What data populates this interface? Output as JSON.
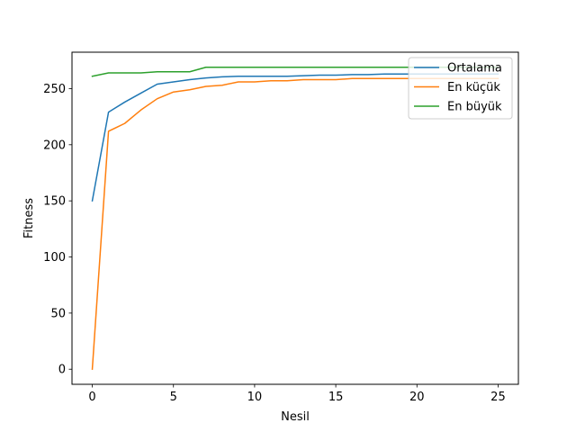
{
  "chart_data": {
    "type": "line",
    "title": "",
    "xlabel": "Nesil",
    "ylabel": "Fitness",
    "xlim": [
      -1.25,
      26.25
    ],
    "ylim": [
      -13.45,
      282.45
    ],
    "xticks": [
      0,
      5,
      10,
      15,
      20,
      25
    ],
    "yticks": [
      0,
      50,
      100,
      150,
      200,
      250
    ],
    "grid": false,
    "legend_position": "top-right",
    "x": [
      0,
      1,
      2,
      3,
      4,
      5,
      6,
      7,
      8,
      9,
      10,
      11,
      12,
      13,
      14,
      15,
      16,
      17,
      18,
      19,
      20,
      21,
      22,
      23,
      24,
      25
    ],
    "series": [
      {
        "name": "Ortalama",
        "color": "#1f77b4",
        "values": [
          150,
          229,
          238,
          246,
          254,
          256,
          258,
          259.5,
          260.5,
          261,
          261,
          261,
          261,
          261.5,
          262,
          262,
          262.5,
          262.5,
          263,
          263,
          263,
          263,
          263,
          263,
          263,
          263
        ]
      },
      {
        "name": "En küçük",
        "color": "#ff7f0e",
        "values": [
          0,
          212,
          219,
          231,
          241,
          247,
          249,
          252,
          253,
          256,
          256,
          257,
          257,
          258,
          258,
          258,
          259,
          259,
          259,
          259,
          259,
          259,
          259,
          259,
          259,
          259
        ]
      },
      {
        "name": "En büyük",
        "color": "#2ca02c",
        "values": [
          261,
          264,
          264,
          264,
          265,
          265,
          265,
          269,
          269,
          269,
          269,
          269,
          269,
          269,
          269,
          269,
          269,
          269,
          269,
          269,
          269,
          269,
          269,
          269,
          269,
          269
        ]
      }
    ]
  }
}
